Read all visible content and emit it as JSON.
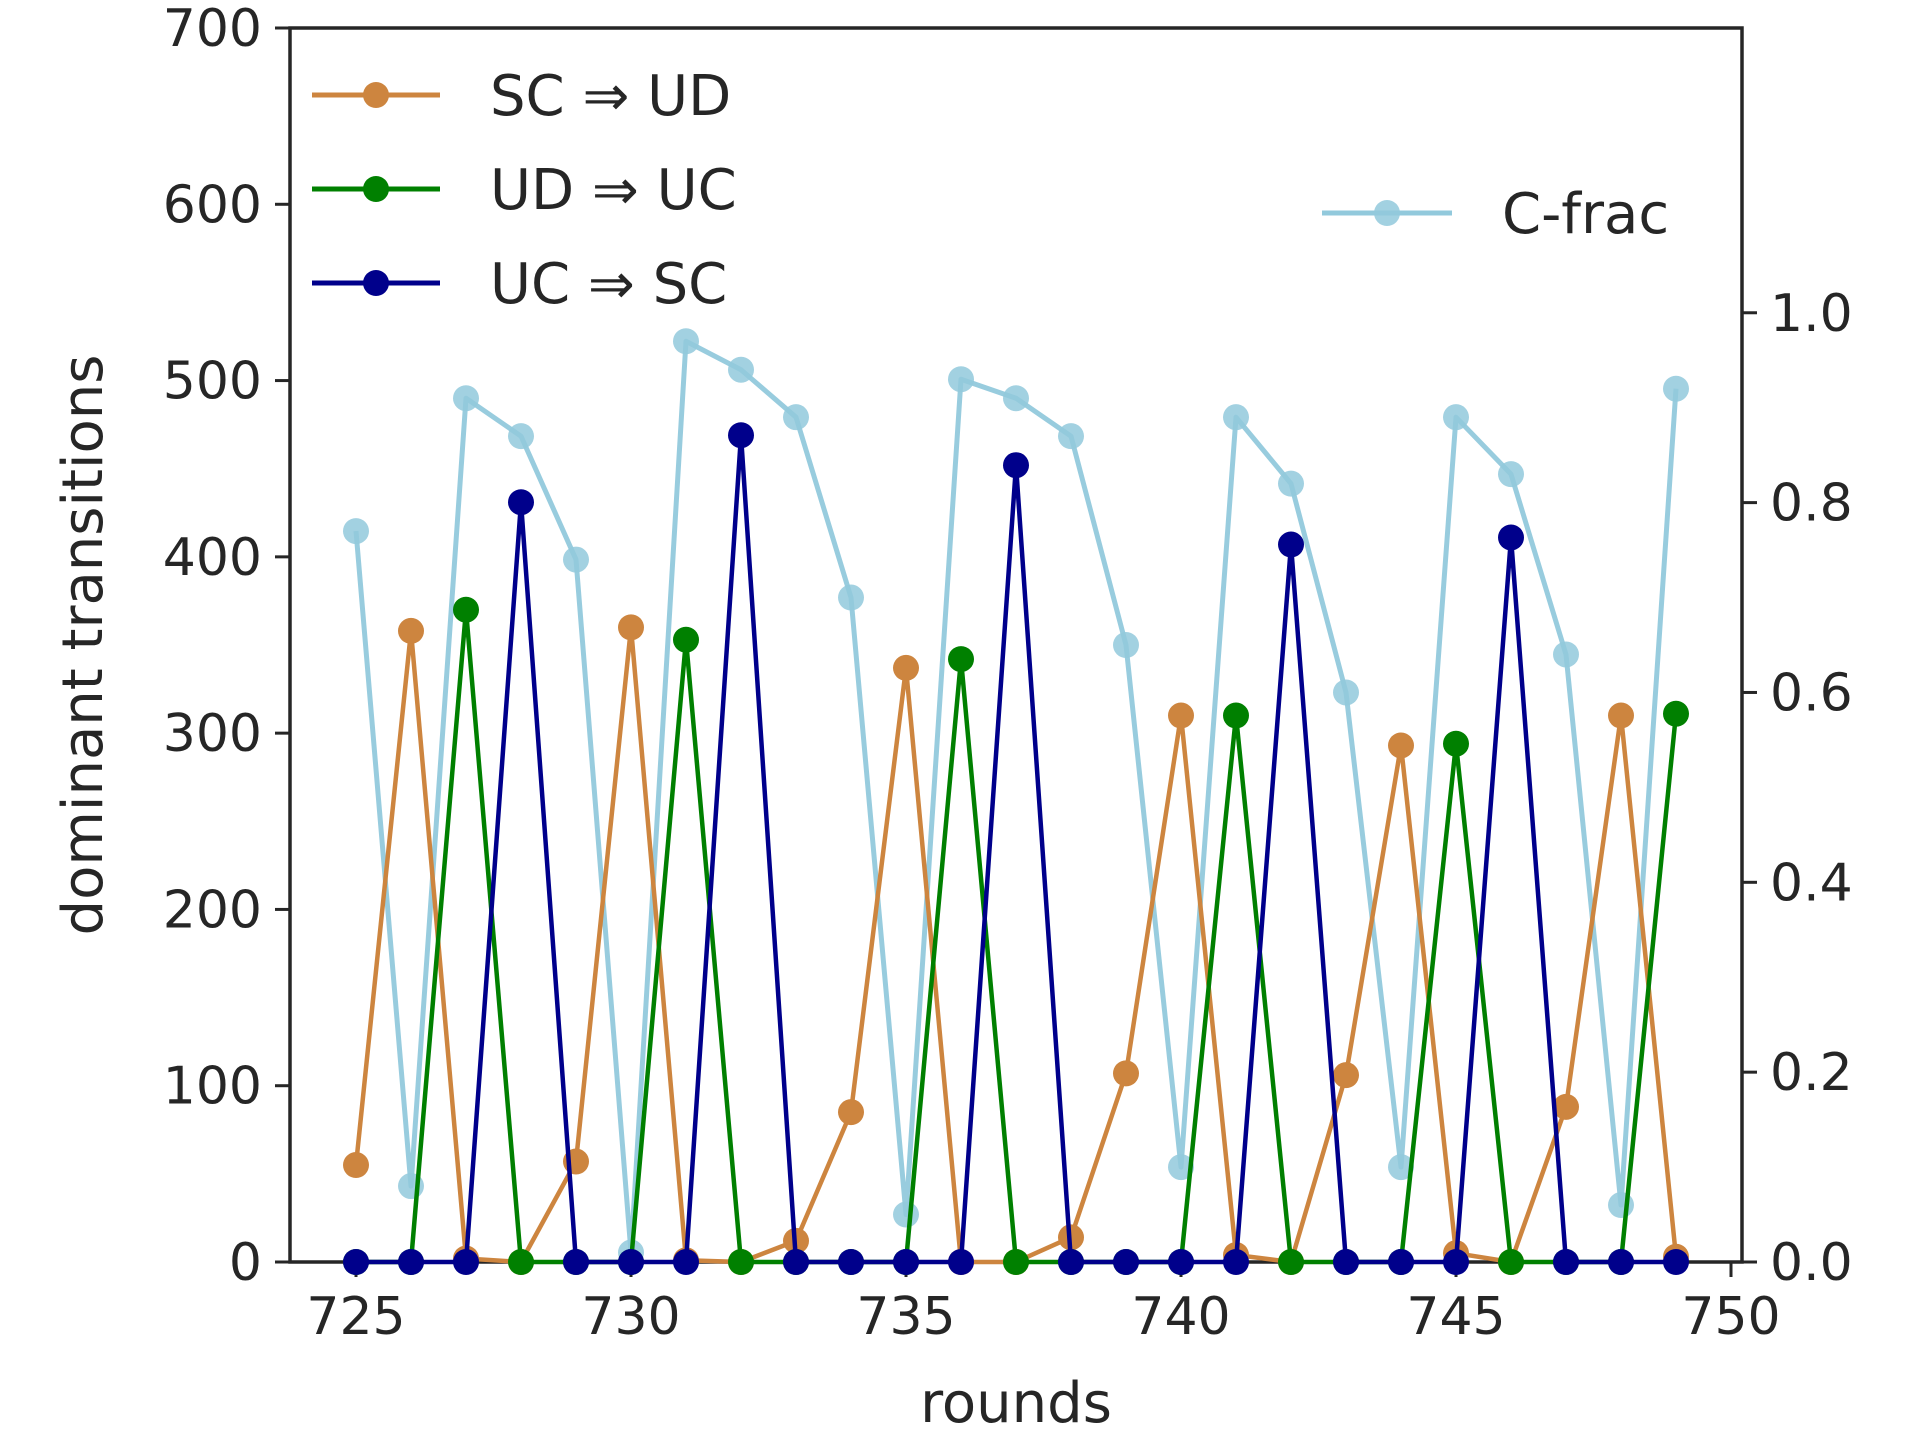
{
  "chart_data": {
    "type": "line",
    "xlabel": "rounds",
    "ylabel": "dominant transitions",
    "xlim": [
      723.8,
      750.2
    ],
    "ylim": [
      0,
      700
    ],
    "y2lim": [
      0,
      1.3
    ],
    "x_ticks": [
      "725",
      "730",
      "735",
      "740",
      "745",
      "750"
    ],
    "y_ticks": [
      "0",
      "100",
      "200",
      "300",
      "400",
      "500",
      "600",
      "700"
    ],
    "y2_ticks": [
      "0.0",
      "0.2",
      "0.4",
      "0.6",
      "0.8",
      "1.0"
    ],
    "grid": false,
    "x": [
      725,
      726,
      727,
      728,
      729,
      730,
      731,
      732,
      733,
      734,
      735,
      736,
      737,
      738,
      739,
      740,
      741,
      742,
      743,
      744,
      745,
      746,
      747,
      748,
      749
    ],
    "series": [
      {
        "name": "SC ⇒ UD",
        "axis": "left",
        "color": "#cd853f",
        "values": [
          55,
          358,
          2,
          0,
          57,
          360,
          1,
          0,
          12,
          85,
          337,
          0,
          0,
          14,
          107,
          310,
          4,
          0,
          106,
          293,
          5,
          0,
          88,
          310,
          3
        ]
      },
      {
        "name": "UD ⇒ UC",
        "axis": "left",
        "color": "#008000",
        "values": [
          0,
          0,
          370,
          0,
          0,
          0,
          353,
          0,
          0,
          0,
          0,
          342,
          0,
          0,
          0,
          0,
          310,
          0,
          0,
          0,
          294,
          0,
          0,
          0,
          311
        ]
      },
      {
        "name": "UC ⇒ SC",
        "axis": "left",
        "color": "#00008b",
        "values": [
          0,
          0,
          0,
          431,
          0,
          0,
          0,
          469,
          0,
          0,
          0,
          0,
          452,
          0,
          0,
          0,
          0,
          407,
          0,
          0,
          0,
          411,
          0,
          0,
          0
        ]
      },
      {
        "name": "C-frac",
        "axis": "right",
        "color": "#92c9dc",
        "values": [
          0.77,
          0.08,
          0.91,
          0.87,
          0.74,
          0.01,
          0.97,
          0.94,
          0.89,
          0.7,
          0.05,
          0.93,
          0.91,
          0.87,
          0.65,
          0.1,
          0.89,
          0.82,
          0.6,
          0.1,
          0.89,
          0.83,
          0.64,
          0.06,
          0.92
        ]
      }
    ],
    "legend_left_placement": "upper-left",
    "legend_right_placement": "upper-right"
  }
}
